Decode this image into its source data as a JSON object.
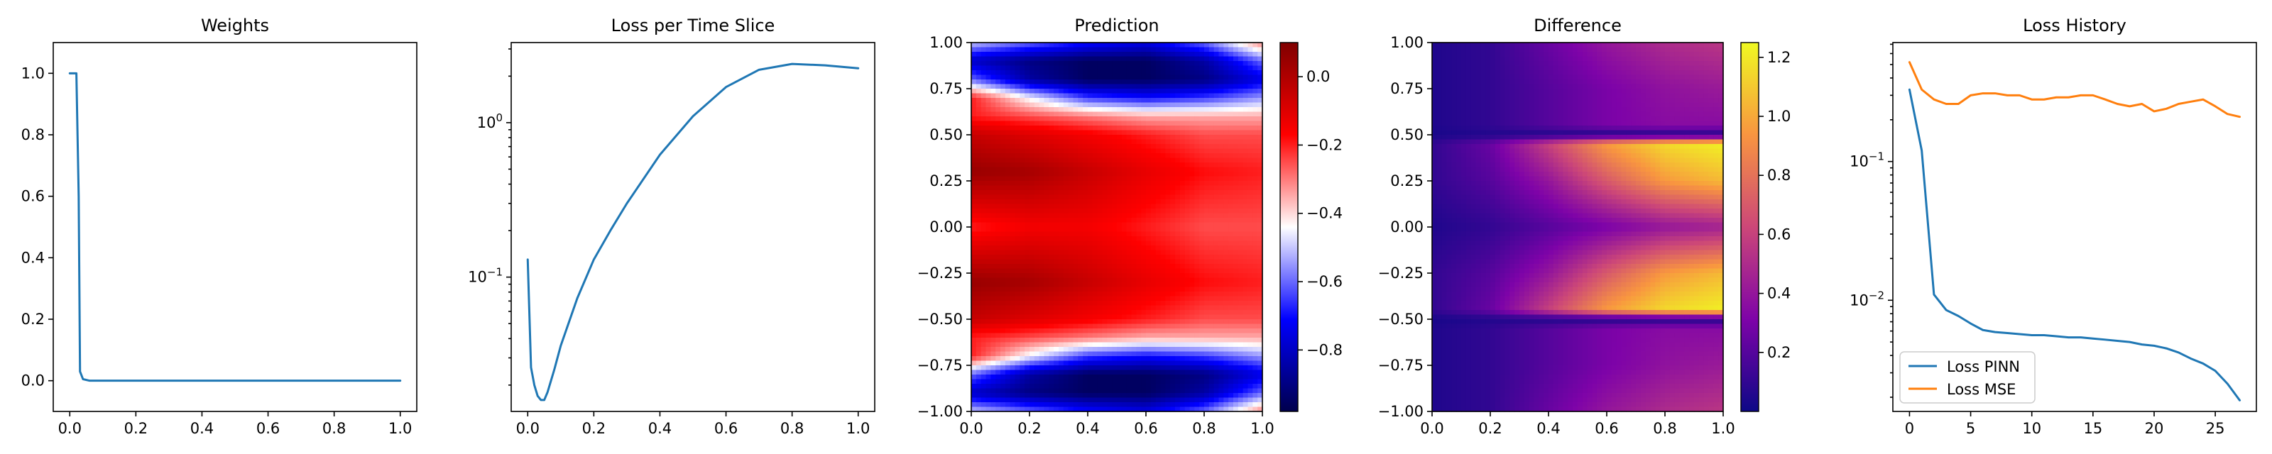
{
  "colors": {
    "blue": "#1f77b4",
    "orange": "#ff7f0e"
  },
  "chart_data": [
    {
      "type": "line",
      "title": "Weights",
      "xlabel": "",
      "ylabel": "",
      "xlim": [
        -0.05,
        1.05
      ],
      "ylim": [
        -0.1,
        1.1
      ],
      "xticks": [
        0.0,
        0.2,
        0.4,
        0.6,
        0.8,
        1.0
      ],
      "xtick_labels": [
        "0.0",
        "0.2",
        "0.4",
        "0.6",
        "0.8",
        "1.0"
      ],
      "yticks": [
        0.0,
        0.2,
        0.4,
        0.6,
        0.8,
        1.0
      ],
      "ytick_labels": [
        "0.0",
        "0.2",
        "0.4",
        "0.6",
        "0.8",
        "1.0"
      ],
      "grid": false,
      "series": [
        {
          "color": "#1f77b4",
          "x": [
            0.0,
            0.01,
            0.02,
            0.027,
            0.031,
            0.04,
            0.06,
            0.1,
            0.2,
            0.4,
            0.6,
            0.8,
            1.0
          ],
          "y": [
            1.0,
            1.0,
            1.0,
            0.6,
            0.03,
            0.005,
            0.0,
            0.0,
            0.0,
            0.0,
            0.0,
            0.0,
            0.0
          ]
        }
      ]
    },
    {
      "type": "line",
      "title": "Loss per Time Slice",
      "xlabel": "",
      "ylabel": "",
      "yscale": "log",
      "xlim": [
        -0.05,
        1.05
      ],
      "ylim": [
        0.0135,
        3.3
      ],
      "xticks": [
        0.0,
        0.2,
        0.4,
        0.6,
        0.8,
        1.0
      ],
      "xtick_labels": [
        "0.0",
        "0.2",
        "0.4",
        "0.6",
        "0.8",
        "1.0"
      ],
      "yticks": [
        0.1,
        1.0
      ],
      "ytick_labels": [
        "10^-1",
        "10^0"
      ],
      "grid": false,
      "series": [
        {
          "color": "#1f77b4",
          "x": [
            0.0,
            0.01,
            0.02,
            0.03,
            0.04,
            0.05,
            0.06,
            0.08,
            0.1,
            0.15,
            0.2,
            0.25,
            0.3,
            0.4,
            0.5,
            0.6,
            0.7,
            0.8,
            0.9,
            1.0
          ],
          "y": [
            0.13,
            0.026,
            0.02,
            0.017,
            0.016,
            0.016,
            0.018,
            0.025,
            0.036,
            0.073,
            0.13,
            0.2,
            0.3,
            0.62,
            1.1,
            1.7,
            2.2,
            2.4,
            2.35,
            2.25
          ]
        }
      ]
    },
    {
      "type": "heatmap",
      "title": "Prediction",
      "xlabel": "",
      "ylabel": "",
      "xlim": [
        0.0,
        1.0
      ],
      "ylim": [
        -1.0,
        1.0
      ],
      "xticks": [
        0.0,
        0.2,
        0.4,
        0.6,
        0.8,
        1.0
      ],
      "xtick_labels": [
        "0.0",
        "0.2",
        "0.4",
        "0.6",
        "0.8",
        "1.0"
      ],
      "yticks": [
        1.0,
        0.75,
        0.5,
        0.25,
        0.0,
        -0.25,
        -0.5,
        -0.75,
        -1.0
      ],
      "ytick_labels": [
        "1.00",
        "0.75",
        "0.50",
        "0.25",
        "0.00",
        "−0.25",
        "−0.50",
        "−0.75",
        "−1.00"
      ],
      "colormap": "seismic",
      "colorbar_range": [
        -0.98,
        0.1
      ],
      "colorbar_ticks": [
        0.0,
        -0.2,
        -0.4,
        -0.6,
        -0.8
      ],
      "colorbar_tick_labels": [
        "0.0",
        "−0.2",
        "−0.4",
        "−0.6",
        "−0.8"
      ],
      "x_columns": [
        0.0,
        0.2,
        0.4,
        0.6,
        0.8,
        1.0
      ],
      "y_rows": [
        1.0,
        0.9,
        0.8,
        0.7,
        0.6,
        0.5,
        0.3,
        0.0,
        -0.3,
        -0.5,
        -0.6,
        -0.7,
        -0.8,
        -0.9,
        -1.0
      ],
      "z": [
        [
          -0.5,
          -0.6,
          -0.7,
          -0.75,
          -0.6,
          -0.3
        ],
        [
          -0.8,
          -0.9,
          -0.95,
          -0.95,
          -0.85,
          -0.6
        ],
        [
          -0.6,
          -0.85,
          -0.95,
          -0.95,
          -0.9,
          -0.75
        ],
        [
          -0.2,
          -0.45,
          -0.65,
          -0.7,
          -0.65,
          -0.55
        ],
        [
          -0.2,
          -0.25,
          -0.3,
          -0.35,
          -0.35,
          -0.35
        ],
        [
          -0.05,
          -0.1,
          -0.15,
          -0.2,
          -0.25,
          -0.25
        ],
        [
          0.05,
          0.02,
          -0.05,
          -0.12,
          -0.18,
          -0.2
        ],
        [
          -0.2,
          -0.15,
          -0.15,
          -0.2,
          -0.25,
          -0.25
        ],
        [
          0.05,
          0.02,
          -0.05,
          -0.12,
          -0.18,
          -0.2
        ],
        [
          -0.05,
          -0.1,
          -0.15,
          -0.2,
          -0.25,
          -0.25
        ],
        [
          -0.2,
          -0.25,
          -0.3,
          -0.35,
          -0.35,
          -0.35
        ],
        [
          -0.2,
          -0.45,
          -0.65,
          -0.7,
          -0.65,
          -0.55
        ],
        [
          -0.6,
          -0.85,
          -0.95,
          -0.95,
          -0.9,
          -0.75
        ],
        [
          -0.8,
          -0.9,
          -0.95,
          -0.95,
          -0.85,
          -0.6
        ],
        [
          -0.5,
          -0.6,
          -0.7,
          -0.75,
          -0.6,
          -0.3
        ]
      ]
    },
    {
      "type": "heatmap",
      "title": "Difference",
      "xlabel": "",
      "ylabel": "",
      "xlim": [
        0.0,
        1.0
      ],
      "ylim": [
        -1.0,
        1.0
      ],
      "xticks": [
        0.0,
        0.2,
        0.4,
        0.6,
        0.8,
        1.0
      ],
      "xtick_labels": [
        "0.0",
        "0.2",
        "0.4",
        "0.6",
        "0.8",
        "1.0"
      ],
      "yticks": [
        1.0,
        0.75,
        0.5,
        0.25,
        0.0,
        -0.25,
        -0.5,
        -0.75,
        -1.0
      ],
      "ytick_labels": [
        "1.00",
        "0.75",
        "0.50",
        "0.25",
        "0.00",
        "−0.25",
        "−0.50",
        "−0.75",
        "−1.00"
      ],
      "colormap": "plasma",
      "colorbar_range": [
        0.0,
        1.25
      ],
      "colorbar_ticks": [
        1.2,
        1.0,
        0.8,
        0.6,
        0.4,
        0.2
      ],
      "colorbar_tick_labels": [
        "1.2",
        "1.0",
        "0.8",
        "0.6",
        "0.4",
        "0.2"
      ],
      "x_columns": [
        0.0,
        0.2,
        0.4,
        0.6,
        0.8,
        1.0
      ],
      "y_rows": [
        1.0,
        0.75,
        0.55,
        0.5,
        0.45,
        0.25,
        0.0,
        -0.25,
        -0.45,
        -0.5,
        -0.55,
        -0.75,
        -1.0
      ],
      "z": [
        [
          0.05,
          0.1,
          0.25,
          0.4,
          0.5,
          0.55
        ],
        [
          0.05,
          0.1,
          0.2,
          0.3,
          0.38,
          0.42
        ],
        [
          0.05,
          0.1,
          0.2,
          0.3,
          0.35,
          0.35
        ],
        [
          0.03,
          0.05,
          0.05,
          0.05,
          0.05,
          0.05
        ],
        [
          0.1,
          0.25,
          0.6,
          0.95,
          1.15,
          1.22
        ],
        [
          0.1,
          0.2,
          0.4,
          0.7,
          0.95,
          1.05
        ],
        [
          0.05,
          0.1,
          0.2,
          0.3,
          0.4,
          0.45
        ],
        [
          0.1,
          0.2,
          0.4,
          0.7,
          0.95,
          1.05
        ],
        [
          0.1,
          0.25,
          0.6,
          0.95,
          1.15,
          1.22
        ],
        [
          0.03,
          0.05,
          0.05,
          0.05,
          0.05,
          0.05
        ],
        [
          0.05,
          0.1,
          0.2,
          0.3,
          0.35,
          0.35
        ],
        [
          0.05,
          0.1,
          0.2,
          0.3,
          0.38,
          0.42
        ],
        [
          0.05,
          0.1,
          0.25,
          0.4,
          0.5,
          0.55
        ]
      ]
    },
    {
      "type": "line",
      "title": "Loss History",
      "xlabel": "",
      "ylabel": "",
      "yscale": "log",
      "xlim": [
        -1.36,
        28.36
      ],
      "ylim": [
        0.00158,
        0.72
      ],
      "xticks": [
        0,
        5,
        10,
        15,
        20,
        25
      ],
      "xtick_labels": [
        "0",
        "5",
        "10",
        "15",
        "20",
        "25"
      ],
      "yticks": [
        0.01,
        0.1
      ],
      "ytick_labels": [
        "10^-2",
        "10^-1"
      ],
      "grid": false,
      "legend": {
        "position": "lower-left"
      },
      "series": [
        {
          "name": "Loss PINN",
          "color": "#1f77b4",
          "x": [
            0,
            1,
            2,
            3,
            4,
            5,
            6,
            7,
            8,
            9,
            10,
            11,
            12,
            13,
            14,
            15,
            16,
            17,
            18,
            19,
            20,
            21,
            22,
            23,
            24,
            25,
            26,
            27
          ],
          "y": [
            0.33,
            0.12,
            0.011,
            0.0085,
            0.0077,
            0.0068,
            0.0061,
            0.0059,
            0.0058,
            0.0057,
            0.0056,
            0.0056,
            0.0055,
            0.0054,
            0.0054,
            0.0053,
            0.0052,
            0.0051,
            0.005,
            0.0048,
            0.0047,
            0.0045,
            0.0042,
            0.0038,
            0.0035,
            0.0031,
            0.0025,
            0.0019
          ]
        },
        {
          "name": "Loss MSE",
          "color": "#ff7f0e",
          "x": [
            0,
            1,
            2,
            3,
            4,
            5,
            6,
            7,
            8,
            9,
            10,
            11,
            12,
            13,
            14,
            15,
            16,
            17,
            18,
            19,
            20,
            21,
            22,
            23,
            24,
            25,
            26,
            27
          ],
          "y": [
            0.52,
            0.33,
            0.28,
            0.26,
            0.26,
            0.3,
            0.31,
            0.31,
            0.3,
            0.3,
            0.28,
            0.28,
            0.29,
            0.29,
            0.3,
            0.3,
            0.28,
            0.26,
            0.25,
            0.26,
            0.23,
            0.24,
            0.26,
            0.27,
            0.28,
            0.25,
            0.22,
            0.21
          ]
        }
      ]
    }
  ]
}
